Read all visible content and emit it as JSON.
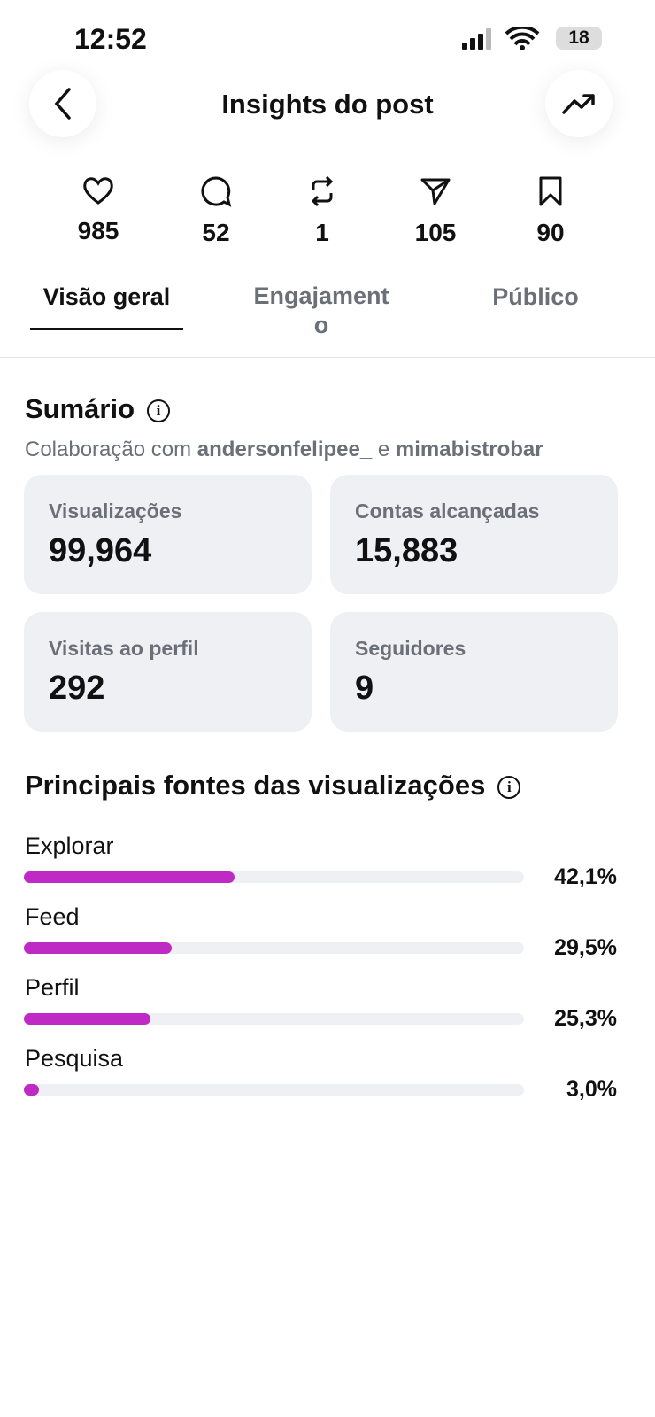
{
  "status_bar": {
    "time": "12:52",
    "battery": 18
  },
  "header": {
    "title": "Insights do post"
  },
  "stats": [
    985,
    52,
    1,
    105,
    90
  ],
  "tabs": [
    "Visão geral",
    "Engajamento",
    "Público"
  ],
  "summary": {
    "title": "Sumário",
    "collab_prefix": "Colaboração com",
    "collab_users": [
      "andersonfelipee_",
      "mimabistrobar"
    ],
    "collab_joiner": "e",
    "cards": [
      {
        "label": "Visualizações",
        "value": "99,964"
      },
      {
        "label": "Contas alcançadas",
        "value": "15,883"
      },
      {
        "label": "Visitas ao perfil",
        "value": 292
      },
      {
        "label": "Seguidores",
        "value": 9
      }
    ]
  },
  "sources": {
    "title": "Principais fontes das visualizações",
    "chart_data": {
      "type": "bar",
      "categories": [
        "Explorar",
        "Feed",
        "Perfil",
        "Pesquisa"
      ],
      "values": [
        42.1,
        29.5,
        25.3,
        3.0
      ],
      "value_labels": [
        "42,1%",
        "29,5%",
        "25,3%",
        "3,0%"
      ],
      "xlim": [
        0,
        100
      ],
      "color": "#c02ac4"
    }
  }
}
